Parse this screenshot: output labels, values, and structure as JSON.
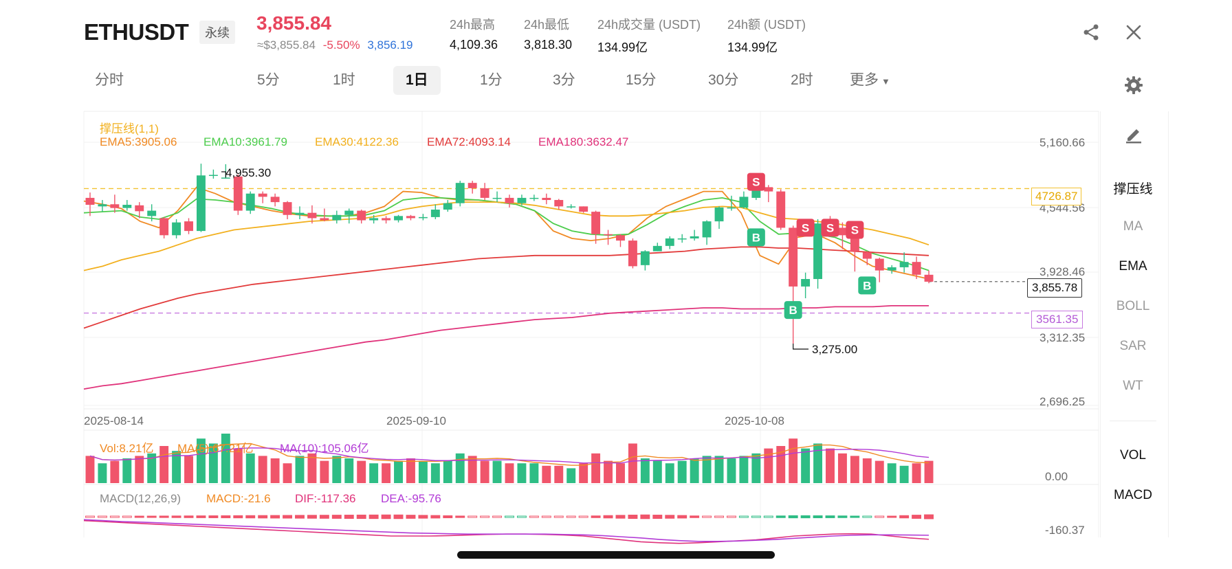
{
  "header": {
    "symbol": "ETHUSDT",
    "contract_type": "永续",
    "last_price": "3,855.84",
    "approx_usd": "≈$3,855.84",
    "change_pct": "-5.50%",
    "mark_price": "3,856.19",
    "stats": [
      {
        "label": "24h最高",
        "value": "4,109.36"
      },
      {
        "label": "24h最低",
        "value": "3,818.30"
      },
      {
        "label": "24h成交量 (USDT)",
        "value": "134.99亿"
      },
      {
        "label": "24h额 (USDT)",
        "value": "134.99亿"
      }
    ],
    "icons": {
      "share": "share-icon",
      "close": "close-icon",
      "settings": "gear-icon",
      "draw": "pencil-icon"
    }
  },
  "timeframes": [
    "分时",
    "5分",
    "1时",
    "1日",
    "1分",
    "3分",
    "15分",
    "30分",
    "2时",
    "更多"
  ],
  "active_timeframe": "1日",
  "colors": {
    "up": "#2ebd85",
    "down": "#f0556b",
    "ema5": "#f08a24",
    "ema10": "#4ccc4c",
    "ema30": "#f2b01e",
    "ema72": "#e23a3a",
    "ema180": "#e0327a",
    "support_line": "#f2c230",
    "resist_line": "#c77ae0"
  },
  "indicators": {
    "support_title": "撑压线(1,1)",
    "ema5": "EMA5:3905.06",
    "ema10": "EMA10:3961.79",
    "ema30": "EMA30:4122.36",
    "ema72": "EMA72:4093.14",
    "ema180": "EMA180:3632.47"
  },
  "side_tabs": [
    "撑压线",
    "MA",
    "EMA",
    "BOLL",
    "SAR",
    "WT"
  ],
  "side_tabs_active": [
    "撑压线",
    "EMA"
  ],
  "sub_tabs": [
    "VOL",
    "MACD"
  ],
  "vol_legend": {
    "vol": "Vol:8.21亿",
    "ma5": "MA(5):67.21亿",
    "ma10": "MA(10):105.06亿"
  },
  "macd_legend": {
    "name": "MACD(12,26,9)",
    "macd": "MACD:-21.6",
    "dif": "DIF:-117.36",
    "dea": "DEA:-95.76"
  },
  "chart_data": {
    "type": "candlestick",
    "y_axis_ticks": [
      "5,160.66",
      "4,544.56",
      "3,928.46",
      "3,312.35",
      "2,696.25"
    ],
    "x_axis_ticks": [
      "2025-08-14",
      "2025-09-10",
      "2025-10-08"
    ],
    "ylim": [
      2696.25,
      5160.66
    ],
    "high_annotation": "4,955.30",
    "low_annotation": "3,275.00",
    "last_price_tag": "3,855.78",
    "resistance": "4726.87",
    "support": "3561.35",
    "vol_axis": "0.00",
    "macd_axis": "-160.37",
    "signals": [
      {
        "label": "S",
        "date_index": 54,
        "price": 4790
      },
      {
        "label": "B",
        "date_index": 54,
        "price": 4270
      },
      {
        "label": "S",
        "date_index": 58,
        "price": 4360
      },
      {
        "label": "S",
        "date_index": 60,
        "price": 4360
      },
      {
        "label": "S",
        "date_index": 62,
        "price": 4340
      },
      {
        "label": "B",
        "date_index": 57,
        "price": 3590
      },
      {
        "label": "B",
        "date_index": 63,
        "price": 3820
      }
    ],
    "candles": [
      [
        4640,
        4575,
        4690,
        4470
      ],
      [
        4560,
        4580,
        4620,
        4510
      ],
      [
        4580,
        4545,
        4670,
        4500
      ],
      [
        4545,
        4575,
        4620,
        4520
      ],
      [
        4570,
        4515,
        4600,
        4450
      ],
      [
        4470,
        4520,
        4580,
        4420
      ],
      [
        4450,
        4290,
        4460,
        4260
      ],
      [
        4290,
        4410,
        4440,
        4260
      ],
      [
        4420,
        4330,
        4450,
        4300
      ],
      [
        4330,
        4850,
        4960,
        4320
      ],
      [
        4850,
        4855,
        4905,
        4820
      ],
      [
        4820,
        4830,
        4955,
        4820
      ],
      [
        4840,
        4520,
        4860,
        4480
      ],
      [
        4520,
        4680,
        4700,
        4490
      ],
      [
        4680,
        4650,
        4700,
        4590
      ],
      [
        4650,
        4600,
        4680,
        4560
      ],
      [
        4600,
        4480,
        4610,
        4440
      ],
      [
        4480,
        4500,
        4560,
        4440
      ],
      [
        4500,
        4450,
        4570,
        4400
      ],
      [
        4450,
        4430,
        4540,
        4420
      ],
      [
        4430,
        4480,
        4520,
        4400
      ],
      [
        4480,
        4520,
        4540,
        4400
      ],
      [
        4520,
        4430,
        4530,
        4400
      ],
      [
        4430,
        4450,
        4480,
        4400
      ],
      [
        4450,
        4430,
        4470,
        4400
      ],
      [
        4430,
        4470,
        4480,
        4410
      ],
      [
        4470,
        4450,
        4480,
        4430
      ],
      [
        4450,
        4460,
        4490,
        4430
      ],
      [
        4460,
        4530,
        4580,
        4440
      ],
      [
        4530,
        4590,
        4620,
        4510
      ],
      [
        4590,
        4780,
        4800,
        4560
      ],
      [
        4780,
        4730,
        4800,
        4680
      ],
      [
        4730,
        4640,
        4780,
        4620
      ],
      [
        4640,
        4640,
        4700,
        4600
      ],
      [
        4640,
        4590,
        4670,
        4550
      ],
      [
        4590,
        4640,
        4670,
        4570
      ],
      [
        4640,
        4640,
        4670,
        4610
      ],
      [
        4640,
        4620,
        4680,
        4580
      ],
      [
        4620,
        4560,
        4630,
        4530
      ],
      [
        4560,
        4560,
        4580,
        4540
      ],
      [
        4560,
        4510,
        4560,
        4500
      ],
      [
        4510,
        4300,
        4520,
        4210
      ],
      [
        4300,
        4290,
        4340,
        4200
      ],
      [
        4290,
        4240,
        4300,
        4180
      ],
      [
        4240,
        4000,
        4260,
        3980
      ],
      [
        4010,
        4140,
        4150,
        3960
      ],
      [
        4140,
        4190,
        4220,
        4140
      ],
      [
        4190,
        4260,
        4280,
        4160
      ],
      [
        4260,
        4260,
        4300,
        4220
      ],
      [
        4260,
        4280,
        4340,
        4240
      ],
      [
        4270,
        4420,
        4430,
        4200
      ],
      [
        4420,
        4550,
        4560,
        4350
      ],
      [
        4550,
        4550,
        4660,
        4520
      ],
      [
        4550,
        4650,
        4700,
        4540
      ],
      [
        4640,
        4740,
        4800,
        4620
      ],
      [
        4740,
        4700,
        4760,
        4600
      ],
      [
        4700,
        4360,
        4720,
        4340
      ],
      [
        4360,
        3810,
        4380,
        3275
      ],
      [
        3810,
        3880,
        3940,
        3700
      ],
      [
        3880,
        4400,
        4440,
        3790
      ],
      [
        4370,
        4360,
        4470,
        4320
      ],
      [
        4360,
        4290,
        4410,
        4160
      ],
      [
        4290,
        4140,
        4300,
        3950
      ],
      [
        4130,
        4070,
        4140,
        4010
      ],
      [
        4070,
        3960,
        4080,
        3850
      ],
      [
        3960,
        3990,
        4010,
        3930
      ],
      [
        3990,
        4040,
        4130,
        3940
      ],
      [
        4040,
        3920,
        4090,
        3880
      ],
      [
        3920,
        3855,
        3960,
        3840
      ]
    ],
    "ema": {
      "ema5": {
        "start": 4610,
        "points": [
          4580,
          4540,
          4420,
          4360,
          4520,
          4740,
          4680,
          4600,
          4560,
          4520,
          4490,
          4470,
          4470,
          4470,
          4500,
          4560,
          4700,
          4690,
          4640,
          4620,
          4620,
          4600,
          4580,
          4520,
          4330,
          4260,
          4240,
          4260,
          4300,
          4450,
          4560,
          4630,
          4700,
          4700,
          4500,
          4100,
          4020,
          4270,
          4300,
          4220,
          4100,
          4000,
          3960,
          3920,
          3880
        ]
      },
      "ema10": {
        "start": 4500,
        "points": [
          4510,
          4520,
          4460,
          4440,
          4500,
          4630,
          4620,
          4600,
          4570,
          4540,
          4500,
          4480,
          4470,
          4470,
          4480,
          4520,
          4620,
          4640,
          4640,
          4630,
          4620,
          4600,
          4580,
          4520,
          4400,
          4330,
          4300,
          4290,
          4300,
          4390,
          4490,
          4560,
          4620,
          4640,
          4600,
          4420,
          4300,
          4310,
          4300,
          4270,
          4200,
          4120,
          4070,
          4020,
          3960
        ]
      },
      "ema30": {
        "start": 3960,
        "points": [
          4000,
          4060,
          4100,
          4140,
          4200,
          4260,
          4300,
          4340,
          4360,
          4380,
          4400,
          4420,
          4430,
          4440,
          4450,
          4480,
          4530,
          4560,
          4580,
          4600,
          4600,
          4600,
          4590,
          4570,
          4540,
          4510,
          4480,
          4470,
          4470,
          4480,
          4500,
          4520,
          4550,
          4560,
          4550,
          4500,
          4450,
          4440,
          4420,
          4400,
          4370,
          4340,
          4300,
          4260,
          4200
        ]
      },
      "ema72": {
        "start": 3420,
        "points": [
          3480,
          3540,
          3600,
          3650,
          3700,
          3740,
          3770,
          3800,
          3830,
          3850,
          3870,
          3890,
          3910,
          3930,
          3950,
          3970,
          3990,
          4010,
          4030,
          4050,
          4070,
          4080,
          4090,
          4100,
          4100,
          4100,
          4100,
          4100,
          4110,
          4120,
          4130,
          4140,
          4160,
          4170,
          4180,
          4180,
          4170,
          4170,
          4160,
          4150,
          4140,
          4130,
          4120,
          4110,
          4100
        ]
      },
      "ema180": {
        "start": 2850,
        "points": [
          2880,
          2900,
          2930,
          2960,
          2990,
          3020,
          3050,
          3080,
          3110,
          3140,
          3170,
          3200,
          3230,
          3260,
          3290,
          3310,
          3340,
          3370,
          3400,
          3420,
          3440,
          3460,
          3480,
          3500,
          3510,
          3520,
          3540,
          3560,
          3570,
          3580,
          3590,
          3600,
          3610,
          3610,
          3600,
          3600,
          3600,
          3610,
          3610,
          3620,
          3620,
          3620,
          3630,
          3630,
          3630
        ]
      }
    },
    "volume": [
      55,
      40,
      45,
      50,
      55,
      60,
      75,
      65,
      55,
      90,
      80,
      100,
      70,
      60,
      55,
      50,
      40,
      55,
      60,
      45,
      55,
      50,
      45,
      40,
      40,
      45,
      50,
      45,
      40,
      45,
      60,
      55,
      45,
      45,
      40,
      40,
      40,
      35,
      35,
      30,
      40,
      60,
      45,
      40,
      80,
      50,
      45,
      40,
      45,
      50,
      55,
      55,
      50,
      55,
      60,
      70,
      75,
      90,
      70,
      80,
      70,
      60,
      55,
      50,
      45,
      40,
      35,
      40,
      45
    ],
    "macd_dif": [
      -20,
      -25,
      -30,
      -35,
      -40,
      -45,
      -50,
      -55,
      -60,
      -65,
      -70,
      -75,
      -80,
      -85,
      -90,
      -95,
      -100,
      -100,
      -100,
      -98,
      -95,
      -92,
      -90,
      -90,
      -92,
      -95,
      -100,
      -110,
      -120,
      -130,
      -135,
      -138,
      -135,
      -130,
      -125,
      -120,
      -110,
      -100,
      -95,
      -90,
      -88,
      -90,
      -100,
      -110,
      -117
    ],
    "macd_dea": [
      -15,
      -20,
      -25,
      -28,
      -32,
      -36,
      -40,
      -44,
      -48,
      -52,
      -56,
      -60,
      -64,
      -68,
      -72,
      -76,
      -80,
      -84,
      -86,
      -88,
      -90,
      -90,
      -90,
      -90,
      -90,
      -92,
      -94,
      -98,
      -104,
      -110,
      -118,
      -124,
      -128,
      -128,
      -126,
      -122,
      -118,
      -112,
      -106,
      -100,
      -96,
      -94,
      -94,
      -95,
      -96
    ]
  }
}
